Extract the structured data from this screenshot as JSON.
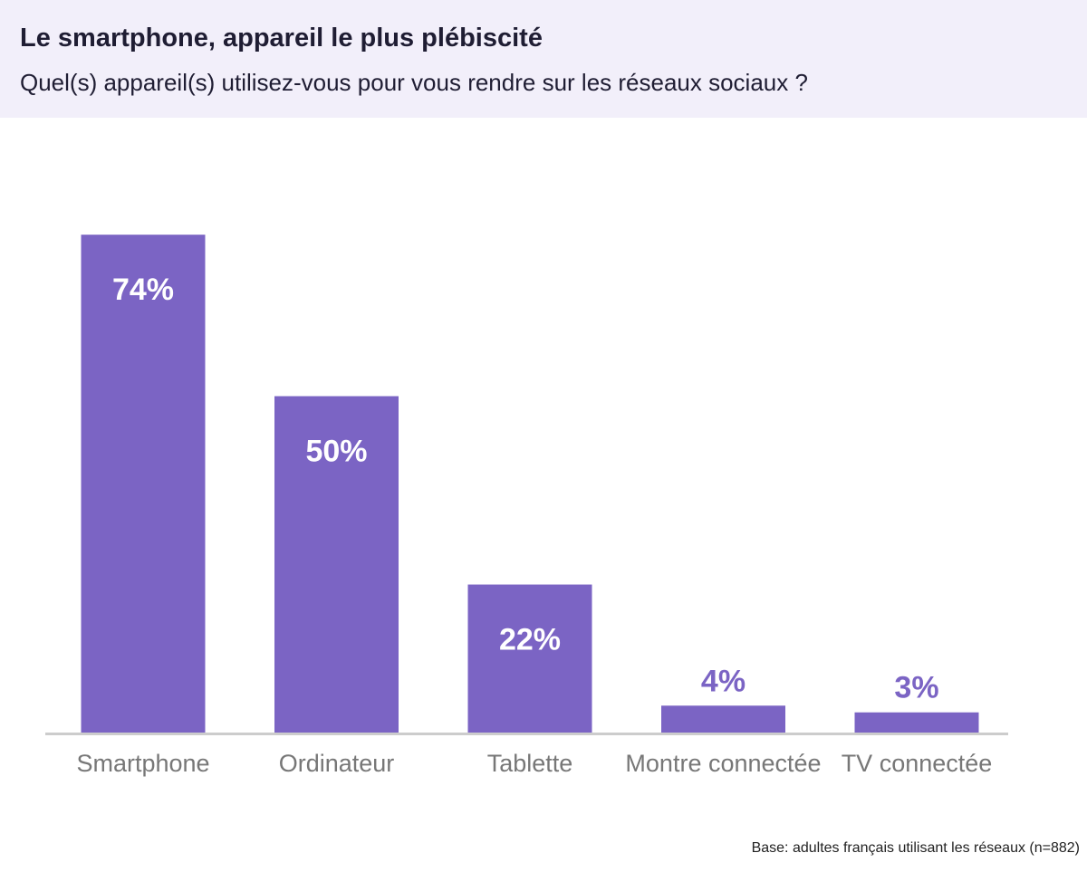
{
  "header": {
    "title": "Le smartphone, appareil le plus plébiscité",
    "subtitle": "Quel(s) appareil(s) utilisez-vous pour vous rendre sur les réseaux sociaux ?"
  },
  "footer": {
    "source": "Base: adultes français utilisant les réseaux (n=882)"
  },
  "colors": {
    "bar": "#7b64c4",
    "label_inside": "#ffffff",
    "label_outside": "#7b64c4",
    "header_bg": "#f2effa",
    "axis": "#cccccc",
    "category_text": "#777777"
  },
  "chart_data": {
    "type": "bar",
    "categories": [
      "Smartphone",
      "Ordinateur",
      "Tablette",
      "Montre connectée",
      "TV connectée"
    ],
    "values": [
      74,
      50,
      22,
      4,
      3
    ],
    "value_labels": [
      "74%",
      "50%",
      "22%",
      "4%",
      "3%"
    ],
    "ylim": [
      0,
      100
    ],
    "grid": false,
    "legend": "none"
  }
}
